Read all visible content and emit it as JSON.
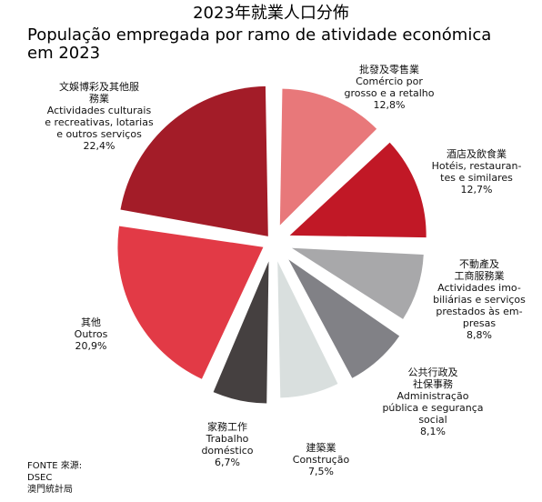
{
  "title_zh": "2023年就業人口分佈",
  "title_pt_line1": "População empregada por ramo de atividade económica",
  "title_pt_line2": "em 2023",
  "source_lines": [
    "FONTE 來源:",
    "DSEC",
    "澳門統計局"
  ],
  "chart_data": {
    "type": "pie",
    "exploded": true,
    "unit": "%",
    "slices": [
      {
        "zh": [
          "批發及零售業"
        ],
        "pt": [
          "Comércio por",
          "grosso e a retalho"
        ],
        "value": 12.8,
        "value_label": "12,8%",
        "color": "#e8787a"
      },
      {
        "zh": [
          "酒店及飲食業"
        ],
        "pt": [
          "Hotéis, restauran-",
          "tes e similares"
        ],
        "value": 12.7,
        "value_label": "12,7%",
        "color": "#c11826"
      },
      {
        "zh": [
          "不動產及",
          "工商服務業"
        ],
        "pt": [
          "Actividades imo-",
          "biliárias e serviços",
          "prestados às em-",
          "presas"
        ],
        "value": 8.8,
        "value_label": "8,8%",
        "color": "#a8a8aa"
      },
      {
        "zh": [
          "公共行政及",
          "社保事務"
        ],
        "pt": [
          "Administração",
          "pública e segurança",
          "social"
        ],
        "value": 8.1,
        "value_label": "8,1%",
        "color": "#818186"
      },
      {
        "zh": [
          "建築業"
        ],
        "pt": [
          "Construção"
        ],
        "value": 7.5,
        "value_label": "7,5%",
        "color": "#d9dfde"
      },
      {
        "zh": [
          "家務工作"
        ],
        "pt": [
          "Trabalho",
          "doméstico"
        ],
        "value": 6.7,
        "value_label": "6,7%",
        "color": "#454040"
      },
      {
        "zh": [
          "其他"
        ],
        "pt": [
          "Outros"
        ],
        "value": 20.9,
        "value_label": "20,9%",
        "color": "#e23a46"
      },
      {
        "zh": [
          "文娛博彩及其他服",
          "務業"
        ],
        "pt": [
          "Actividades culturais",
          "e recreativas, lotarias",
          "e outros serviços"
        ],
        "value": 22.4,
        "value_label": "22,4%",
        "color": "#a31c28"
      }
    ]
  }
}
